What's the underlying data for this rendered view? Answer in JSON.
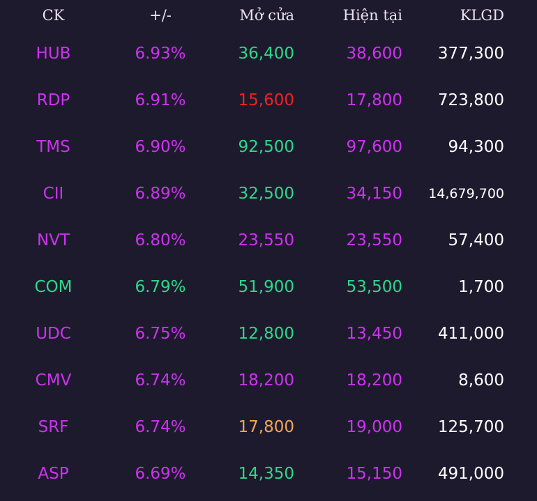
{
  "header": {
    "ck": "CK",
    "change": "+/-",
    "open": "Mở cửa",
    "current": "Hiện tại",
    "volume": "KLGD"
  },
  "colors": {
    "background": "#1e1a2e",
    "purple": "#cc33ee",
    "green": "#2ed888",
    "red": "#ee2222",
    "orange": "#f5a45a",
    "white": "#ffffff"
  },
  "rows": [
    {
      "ck": "HUB",
      "change": "6.93%",
      "open": "36,400",
      "current": "38,600",
      "volume": "377,300",
      "ck_color": "purple",
      "change_color": "purple",
      "open_color": "green",
      "current_color": "purple"
    },
    {
      "ck": "RDP",
      "change": "6.91%",
      "open": "15,600",
      "current": "17,800",
      "volume": "723,800",
      "ck_color": "purple",
      "change_color": "purple",
      "open_color": "red",
      "current_color": "purple"
    },
    {
      "ck": "TMS",
      "change": "6.90%",
      "open": "92,500",
      "current": "97,600",
      "volume": "94,300",
      "ck_color": "purple",
      "change_color": "purple",
      "open_color": "green",
      "current_color": "purple"
    },
    {
      "ck": "CII",
      "change": "6.89%",
      "open": "32,500",
      "current": "34,150",
      "volume": "14,679,700",
      "ck_color": "purple",
      "change_color": "purple",
      "open_color": "green",
      "current_color": "purple"
    },
    {
      "ck": "NVT",
      "change": "6.80%",
      "open": "23,550",
      "current": "23,550",
      "volume": "57,400",
      "ck_color": "purple",
      "change_color": "purple",
      "open_color": "purple",
      "current_color": "purple"
    },
    {
      "ck": "COM",
      "change": "6.79%",
      "open": "51,900",
      "current": "53,500",
      "volume": "1,700",
      "ck_color": "green",
      "change_color": "green",
      "open_color": "green",
      "current_color": "green"
    },
    {
      "ck": "UDC",
      "change": "6.75%",
      "open": "12,800",
      "current": "13,450",
      "volume": "411,000",
      "ck_color": "purple",
      "change_color": "purple",
      "open_color": "green",
      "current_color": "purple"
    },
    {
      "ck": "CMV",
      "change": "6.74%",
      "open": "18,200",
      "current": "18,200",
      "volume": "8,600",
      "ck_color": "purple",
      "change_color": "purple",
      "open_color": "purple",
      "current_color": "purple"
    },
    {
      "ck": "SRF",
      "change": "6.74%",
      "open": "17,800",
      "current": "19,000",
      "volume": "125,700",
      "ck_color": "purple",
      "change_color": "purple",
      "open_color": "orange",
      "current_color": "purple"
    },
    {
      "ck": "ASP",
      "change": "6.69%",
      "open": "14,350",
      "current": "15,150",
      "volume": "491,000",
      "ck_color": "purple",
      "change_color": "purple",
      "open_color": "green",
      "current_color": "purple"
    }
  ]
}
